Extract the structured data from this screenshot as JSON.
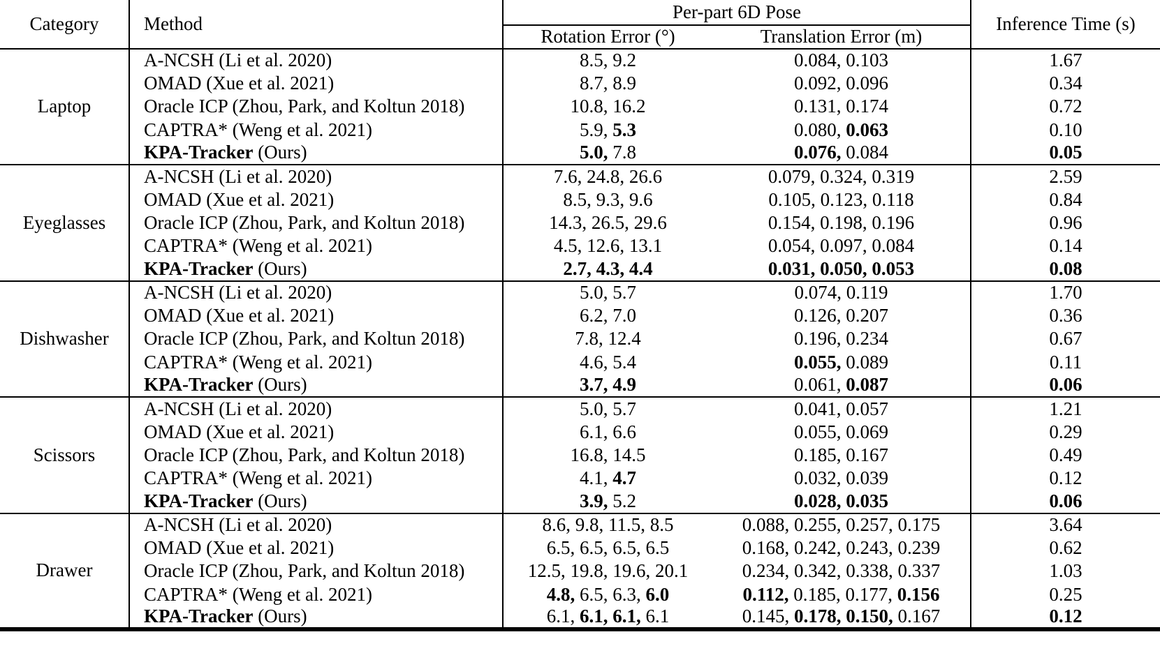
{
  "separator": ", ",
  "colors": {
    "text": "#000000",
    "background": "#ffffff",
    "rule": "#000000"
  },
  "header": {
    "category": "Category",
    "method": "Method",
    "pose_group": "Per-part 6D Pose",
    "rotation": "Rotation Error (°)",
    "translation": "Translation Error (m)",
    "inference": "Inference Time (s)"
  },
  "sections": [
    {
      "category": "Laptop",
      "rows": [
        {
          "method_parts": [
            {
              "t": "A-NCSH (Li et al. 2020)",
              "b": false
            }
          ],
          "rotation_parts": [
            {
              "t": "8.5",
              "b": false
            },
            {
              "t": "9.2",
              "b": false
            }
          ],
          "translation_parts": [
            {
              "t": "0.084",
              "b": false
            },
            {
              "t": "0.103",
              "b": false
            }
          ],
          "time": {
            "t": "1.67",
            "b": false
          }
        },
        {
          "method_parts": [
            {
              "t": "OMAD (Xue et al. 2021)",
              "b": false
            }
          ],
          "rotation_parts": [
            {
              "t": "8.7",
              "b": false
            },
            {
              "t": "8.9",
              "b": false
            }
          ],
          "translation_parts": [
            {
              "t": "0.092",
              "b": false
            },
            {
              "t": "0.096",
              "b": false
            }
          ],
          "time": {
            "t": "0.34",
            "b": false
          }
        },
        {
          "method_parts": [
            {
              "t": "Oracle ICP (Zhou, Park, and Koltun 2018)",
              "b": false
            }
          ],
          "rotation_parts": [
            {
              "t": "10.8",
              "b": false
            },
            {
              "t": "16.2",
              "b": false
            }
          ],
          "translation_parts": [
            {
              "t": "0.131",
              "b": false
            },
            {
              "t": "0.174",
              "b": false
            }
          ],
          "time": {
            "t": "0.72",
            "b": false
          }
        },
        {
          "method_parts": [
            {
              "t": "CAPTRA* (Weng et al. 2021)",
              "b": false
            }
          ],
          "rotation_parts": [
            {
              "t": "5.9",
              "b": false
            },
            {
              "t": "5.3",
              "b": true
            }
          ],
          "translation_parts": [
            {
              "t": "0.080",
              "b": false
            },
            {
              "t": "0.063",
              "b": true
            }
          ],
          "time": {
            "t": "0.10",
            "b": false
          }
        },
        {
          "method_parts": [
            {
              "t": "KPA-Tracker",
              "b": true
            },
            {
              "t": " (Ours)",
              "b": false
            }
          ],
          "rotation_parts": [
            {
              "t": "5.0",
              "b": true
            },
            {
              "t": "7.8",
              "b": false
            }
          ],
          "translation_parts": [
            {
              "t": "0.076",
              "b": true
            },
            {
              "t": "0.084",
              "b": false
            }
          ],
          "time": {
            "t": "0.05",
            "b": true
          }
        }
      ]
    },
    {
      "category": "Eyeglasses",
      "rows": [
        {
          "method_parts": [
            {
              "t": "A-NCSH (Li et al. 2020)",
              "b": false
            }
          ],
          "rotation_parts": [
            {
              "t": "7.6",
              "b": false
            },
            {
              "t": "24.8",
              "b": false
            },
            {
              "t": "26.6",
              "b": false
            }
          ],
          "translation_parts": [
            {
              "t": "0.079",
              "b": false
            },
            {
              "t": "0.324",
              "b": false
            },
            {
              "t": "0.319",
              "b": false
            }
          ],
          "time": {
            "t": "2.59",
            "b": false
          }
        },
        {
          "method_parts": [
            {
              "t": "OMAD (Xue et al. 2021)",
              "b": false
            }
          ],
          "rotation_parts": [
            {
              "t": "8.5",
              "b": false
            },
            {
              "t": "9.3",
              "b": false
            },
            {
              "t": "9.6",
              "b": false
            }
          ],
          "translation_parts": [
            {
              "t": "0.105",
              "b": false
            },
            {
              "t": "0.123",
              "b": false
            },
            {
              "t": "0.118",
              "b": false
            }
          ],
          "time": {
            "t": "0.84",
            "b": false
          }
        },
        {
          "method_parts": [
            {
              "t": "Oracle ICP (Zhou, Park, and Koltun 2018)",
              "b": false
            }
          ],
          "rotation_parts": [
            {
              "t": "14.3",
              "b": false
            },
            {
              "t": "26.5",
              "b": false
            },
            {
              "t": "29.6",
              "b": false
            }
          ],
          "translation_parts": [
            {
              "t": "0.154",
              "b": false
            },
            {
              "t": "0.198",
              "b": false
            },
            {
              "t": "0.196",
              "b": false
            }
          ],
          "time": {
            "t": "0.96",
            "b": false
          }
        },
        {
          "method_parts": [
            {
              "t": "CAPTRA* (Weng et al. 2021)",
              "b": false
            }
          ],
          "rotation_parts": [
            {
              "t": "4.5",
              "b": false
            },
            {
              "t": "12.6",
              "b": false
            },
            {
              "t": "13.1",
              "b": false
            }
          ],
          "translation_parts": [
            {
              "t": "0.054",
              "b": false
            },
            {
              "t": "0.097",
              "b": false
            },
            {
              "t": "0.084",
              "b": false
            }
          ],
          "time": {
            "t": "0.14",
            "b": false
          }
        },
        {
          "method_parts": [
            {
              "t": "KPA-Tracker",
              "b": true
            },
            {
              "t": " (Ours)",
              "b": false
            }
          ],
          "rotation_parts": [
            {
              "t": "2.7",
              "b": true
            },
            {
              "t": "4.3",
              "b": true
            },
            {
              "t": "4.4",
              "b": true
            }
          ],
          "translation_parts": [
            {
              "t": "0.031",
              "b": true
            },
            {
              "t": "0.050",
              "b": true
            },
            {
              "t": "0.053",
              "b": true
            }
          ],
          "time": {
            "t": "0.08",
            "b": true
          }
        }
      ]
    },
    {
      "category": "Dishwasher",
      "rows": [
        {
          "method_parts": [
            {
              "t": "A-NCSH (Li et al. 2020)",
              "b": false
            }
          ],
          "rotation_parts": [
            {
              "t": "5.0",
              "b": false
            },
            {
              "t": "5.7",
              "b": false
            }
          ],
          "translation_parts": [
            {
              "t": "0.074",
              "b": false
            },
            {
              "t": "0.119",
              "b": false
            }
          ],
          "time": {
            "t": "1.70",
            "b": false
          }
        },
        {
          "method_parts": [
            {
              "t": "OMAD (Xue et al. 2021)",
              "b": false
            }
          ],
          "rotation_parts": [
            {
              "t": "6.2",
              "b": false
            },
            {
              "t": "7.0",
              "b": false
            }
          ],
          "translation_parts": [
            {
              "t": "0.126",
              "b": false
            },
            {
              "t": "0.207",
              "b": false
            }
          ],
          "time": {
            "t": "0.36",
            "b": false
          }
        },
        {
          "method_parts": [
            {
              "t": "Oracle ICP (Zhou, Park, and Koltun 2018)",
              "b": false
            }
          ],
          "rotation_parts": [
            {
              "t": "7.8",
              "b": false
            },
            {
              "t": "12.4",
              "b": false
            }
          ],
          "translation_parts": [
            {
              "t": "0.196",
              "b": false
            },
            {
              "t": "0.234",
              "b": false
            }
          ],
          "time": {
            "t": "0.67",
            "b": false
          }
        },
        {
          "method_parts": [
            {
              "t": "CAPTRA* (Weng et al. 2021)",
              "b": false
            }
          ],
          "rotation_parts": [
            {
              "t": "4.6",
              "b": false
            },
            {
              "t": "5.4",
              "b": false
            }
          ],
          "translation_parts": [
            {
              "t": "0.055",
              "b": true
            },
            {
              "t": "0.089",
              "b": false
            }
          ],
          "time": {
            "t": "0.11",
            "b": false
          }
        },
        {
          "method_parts": [
            {
              "t": "KPA-Tracker",
              "b": true
            },
            {
              "t": " (Ours)",
              "b": false
            }
          ],
          "rotation_parts": [
            {
              "t": "3.7",
              "b": true
            },
            {
              "t": "4.9",
              "b": true
            }
          ],
          "translation_parts": [
            {
              "t": "0.061",
              "b": false
            },
            {
              "t": "0.087",
              "b": true
            }
          ],
          "time": {
            "t": "0.06",
            "b": true
          }
        }
      ]
    },
    {
      "category": "Scissors",
      "rows": [
        {
          "method_parts": [
            {
              "t": "A-NCSH (Li et al. 2020)",
              "b": false
            }
          ],
          "rotation_parts": [
            {
              "t": "5.0",
              "b": false
            },
            {
              "t": "5.7",
              "b": false
            }
          ],
          "translation_parts": [
            {
              "t": "0.041",
              "b": false
            },
            {
              "t": "0.057",
              "b": false
            }
          ],
          "time": {
            "t": "1.21",
            "b": false
          }
        },
        {
          "method_parts": [
            {
              "t": "OMAD (Xue et al. 2021)",
              "b": false
            }
          ],
          "rotation_parts": [
            {
              "t": "6.1",
              "b": false
            },
            {
              "t": "6.6",
              "b": false
            }
          ],
          "translation_parts": [
            {
              "t": "0.055",
              "b": false
            },
            {
              "t": "0.069",
              "b": false
            }
          ],
          "time": {
            "t": "0.29",
            "b": false
          }
        },
        {
          "method_parts": [
            {
              "t": "Oracle ICP (Zhou, Park, and Koltun 2018)",
              "b": false
            }
          ],
          "rotation_parts": [
            {
              "t": "16.8",
              "b": false
            },
            {
              "t": "14.5",
              "b": false
            }
          ],
          "translation_parts": [
            {
              "t": "0.185",
              "b": false
            },
            {
              "t": "0.167",
              "b": false
            }
          ],
          "time": {
            "t": "0.49",
            "b": false
          }
        },
        {
          "method_parts": [
            {
              "t": "CAPTRA* (Weng et al. 2021)",
              "b": false
            }
          ],
          "rotation_parts": [
            {
              "t": "4.1",
              "b": false
            },
            {
              "t": "4.7",
              "b": true
            }
          ],
          "translation_parts": [
            {
              "t": "0.032",
              "b": false
            },
            {
              "t": "0.039",
              "b": false
            }
          ],
          "time": {
            "t": "0.12",
            "b": false
          }
        },
        {
          "method_parts": [
            {
              "t": "KPA-Tracker",
              "b": true
            },
            {
              "t": " (Ours)",
              "b": false
            }
          ],
          "rotation_parts": [
            {
              "t": "3.9",
              "b": true
            },
            {
              "t": "5.2",
              "b": false
            }
          ],
          "translation_parts": [
            {
              "t": "0.028",
              "b": true
            },
            {
              "t": "0.035",
              "b": true
            }
          ],
          "time": {
            "t": "0.06",
            "b": true
          }
        }
      ]
    },
    {
      "category": "Drawer",
      "rows": [
        {
          "method_parts": [
            {
              "t": "A-NCSH (Li et al. 2020)",
              "b": false
            }
          ],
          "rotation_parts": [
            {
              "t": "8.6",
              "b": false
            },
            {
              "t": "9.8",
              "b": false
            },
            {
              "t": "11.5",
              "b": false
            },
            {
              "t": "8.5",
              "b": false
            }
          ],
          "translation_parts": [
            {
              "t": "0.088",
              "b": false
            },
            {
              "t": "0.255",
              "b": false
            },
            {
              "t": "0.257",
              "b": false
            },
            {
              "t": "0.175",
              "b": false
            }
          ],
          "time": {
            "t": "3.64",
            "b": false
          }
        },
        {
          "method_parts": [
            {
              "t": "OMAD (Xue et al. 2021)",
              "b": false
            }
          ],
          "rotation_parts": [
            {
              "t": "6.5",
              "b": false
            },
            {
              "t": "6.5",
              "b": false
            },
            {
              "t": "6.5",
              "b": false
            },
            {
              "t": "6.5",
              "b": false
            }
          ],
          "translation_parts": [
            {
              "t": "0.168",
              "b": false
            },
            {
              "t": "0.242",
              "b": false
            },
            {
              "t": "0.243",
              "b": false
            },
            {
              "t": "0.239",
              "b": false
            }
          ],
          "time": {
            "t": "0.62",
            "b": false
          }
        },
        {
          "method_parts": [
            {
              "t": "Oracle ICP (Zhou, Park, and Koltun 2018)",
              "b": false
            }
          ],
          "rotation_parts": [
            {
              "t": "12.5",
              "b": false
            },
            {
              "t": "19.8",
              "b": false
            },
            {
              "t": "19.6",
              "b": false
            },
            {
              "t": "20.1",
              "b": false
            }
          ],
          "translation_parts": [
            {
              "t": "0.234",
              "b": false
            },
            {
              "t": "0.342",
              "b": false
            },
            {
              "t": "0.338",
              "b": false
            },
            {
              "t": "0.337",
              "b": false
            }
          ],
          "time": {
            "t": "1.03",
            "b": false
          }
        },
        {
          "method_parts": [
            {
              "t": "CAPTRA* (Weng et al. 2021)",
              "b": false
            }
          ],
          "rotation_parts": [
            {
              "t": "4.8",
              "b": true
            },
            {
              "t": "6.5",
              "b": false
            },
            {
              "t": "6.3",
              "b": false
            },
            {
              "t": "6.0",
              "b": true
            }
          ],
          "translation_parts": [
            {
              "t": "0.112",
              "b": true
            },
            {
              "t": "0.185",
              "b": false
            },
            {
              "t": "0.177",
              "b": false
            },
            {
              "t": "0.156",
              "b": true
            }
          ],
          "time": {
            "t": "0.25",
            "b": false
          }
        },
        {
          "method_parts": [
            {
              "t": "KPA-Tracker",
              "b": true
            },
            {
              "t": " (Ours)",
              "b": false
            }
          ],
          "rotation_parts": [
            {
              "t": "6.1",
              "b": false
            },
            {
              "t": "6.1",
              "b": true
            },
            {
              "t": "6.1",
              "b": true
            },
            {
              "t": "6.1",
              "b": false
            }
          ],
          "translation_parts": [
            {
              "t": "0.145",
              "b": false
            },
            {
              "t": "0.178",
              "b": true
            },
            {
              "t": "0.150",
              "b": true
            },
            {
              "t": "0.167",
              "b": false
            }
          ],
          "time": {
            "t": "0.12",
            "b": true
          }
        }
      ]
    }
  ]
}
